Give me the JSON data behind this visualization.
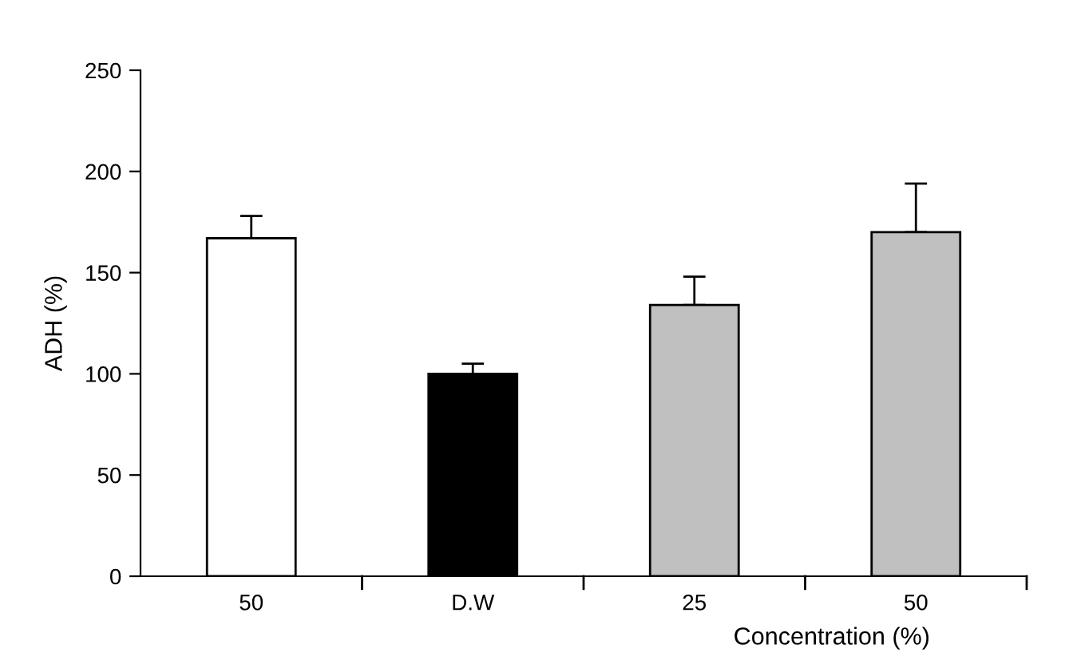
{
  "chart_data": {
    "type": "bar",
    "xlabel": "Concentration (%)",
    "ylabel": "ADH (%)",
    "categories": [
      "50",
      "D.W",
      "25",
      "50"
    ],
    "values": [
      167,
      100,
      134,
      170
    ],
    "colors": [
      "#ffffff",
      "#000000",
      "#c0c0c0",
      "#c0c0c0"
    ],
    "errors": [
      [
        167,
        178
      ],
      [
        100,
        105
      ],
      [
        134,
        148
      ],
      [
        170,
        194
      ]
    ],
    "ylim": [
      0,
      250
    ],
    "yticks": [
      0,
      50,
      100,
      150,
      200,
      250
    ],
    "grid": false,
    "legend": false
  }
}
